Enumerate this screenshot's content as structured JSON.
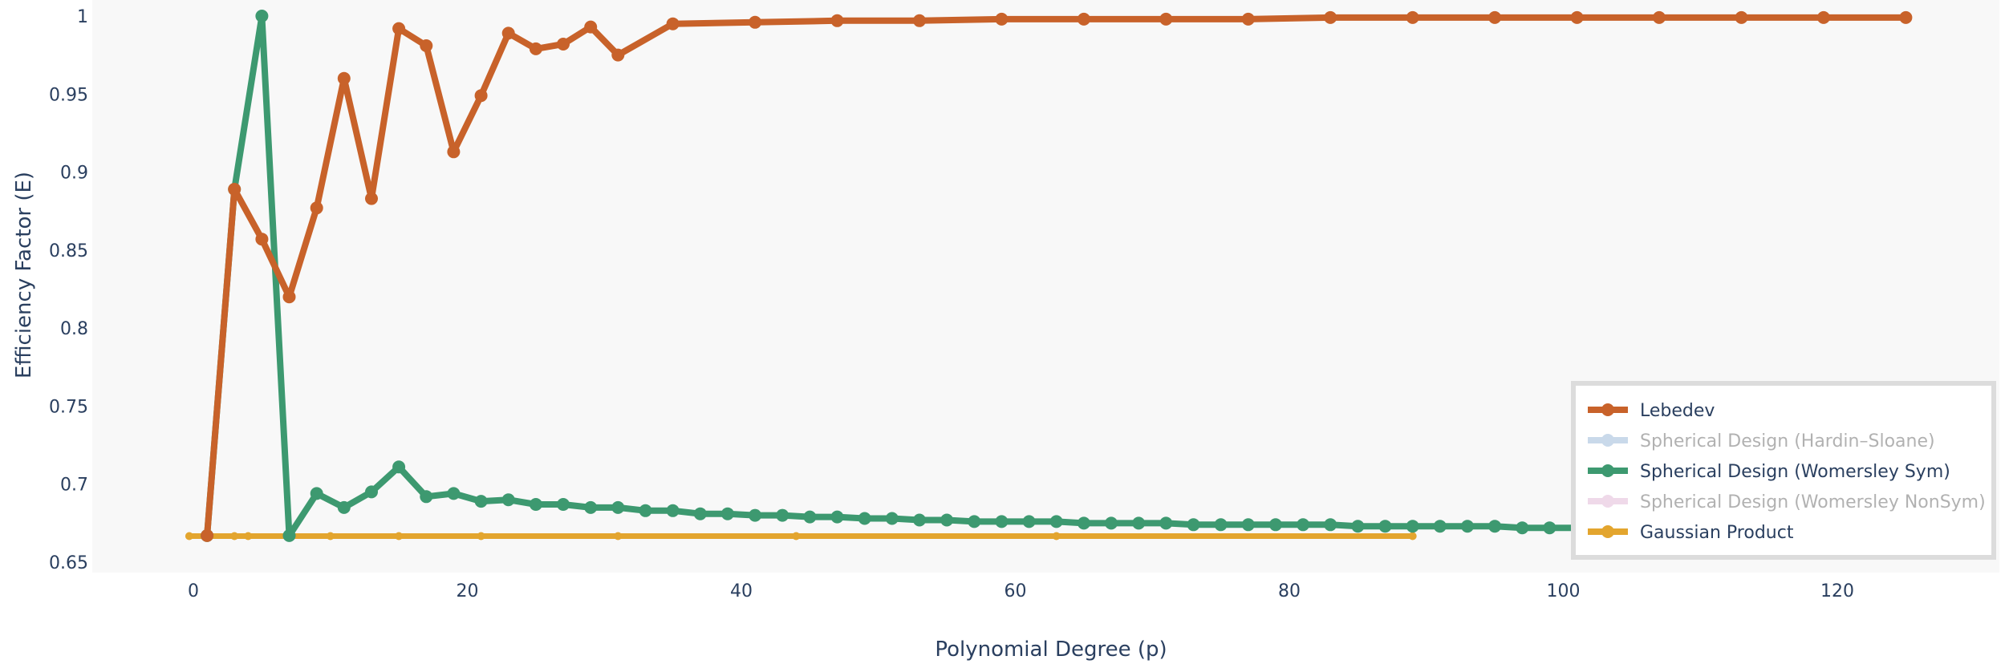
{
  "chart_data": {
    "type": "line",
    "title": "",
    "xlabel": "Polynomial Degree (p)",
    "ylabel": "Efficiency Factor (E)",
    "xlim": [
      -12,
      132
    ],
    "ylim": [
      0.65,
      1
    ],
    "x_ticks": [
      0,
      20,
      40,
      60,
      80,
      100,
      120
    ],
    "y_ticks": [
      0.65,
      0.7,
      0.75,
      0.8,
      0.85,
      0.9,
      0.95,
      1
    ],
    "y_tick_labels": [
      "0.65",
      "0.7",
      "0.75",
      "0.8",
      "0.85",
      "0.9",
      "0.95",
      "1"
    ],
    "grid": false,
    "legend_position": "bottom-right",
    "series": [
      {
        "name": "Lebedev",
        "color": "#c8622a",
        "visible": true,
        "x": [
          1,
          3,
          5,
          7,
          9,
          11,
          13,
          15,
          17,
          19,
          21,
          23,
          25,
          27,
          29,
          31,
          35,
          41,
          47,
          53,
          59,
          65,
          71,
          77,
          83,
          89,
          95,
          101,
          107,
          113,
          119,
          125
        ],
        "y": [
          0.667,
          0.889,
          0.857,
          0.82,
          0.877,
          0.96,
          0.883,
          0.992,
          0.981,
          0.913,
          0.949,
          0.989,
          0.979,
          0.982,
          0.993,
          0.975,
          0.995,
          0.996,
          0.997,
          0.997,
          0.998,
          0.998,
          0.998,
          0.998,
          0.999,
          0.999,
          0.999,
          0.999,
          0.999,
          0.999,
          0.999,
          0.999
        ]
      },
      {
        "name": "Spherical Design (Hardin–Sloane)",
        "color": "#94b5d6",
        "visible": false,
        "x": [],
        "y": []
      },
      {
        "name": "Spherical Design (Womersley Sym)",
        "color": "#3d9970",
        "visible": true,
        "x": [
          1,
          3,
          5,
          7,
          9,
          11,
          13,
          15,
          17,
          19,
          21,
          23,
          25,
          27,
          29,
          31,
          33,
          35,
          37,
          39,
          41,
          43,
          45,
          47,
          49,
          51,
          53,
          55,
          57,
          59,
          61,
          63,
          65,
          67,
          69,
          71,
          73,
          75,
          77,
          79,
          81,
          83,
          85,
          87,
          89,
          91,
          93,
          95,
          97,
          99,
          101
        ],
        "y": [
          0.667,
          0.889,
          1.0,
          0.667,
          0.694,
          0.685,
          0.695,
          0.711,
          0.692,
          0.694,
          0.689,
          0.69,
          0.687,
          0.687,
          0.685,
          0.685,
          0.683,
          0.683,
          0.681,
          0.681,
          0.68,
          0.68,
          0.679,
          0.679,
          0.678,
          0.678,
          0.677,
          0.677,
          0.676,
          0.676,
          0.676,
          0.676,
          0.675,
          0.675,
          0.675,
          0.675,
          0.674,
          0.674,
          0.674,
          0.674,
          0.674,
          0.674,
          0.673,
          0.673,
          0.673,
          0.673,
          0.673,
          0.673,
          0.672,
          0.672,
          0.672
        ]
      },
      {
        "name": "Spherical Design (Womersley NonSym)",
        "color": "#e0b4d4",
        "visible": false,
        "x": [],
        "y": []
      },
      {
        "name": "Gaussian Product",
        "color": "#e3a52e",
        "visible": true,
        "x": [
          -0.3,
          1,
          3,
          4,
          10,
          15,
          21,
          31,
          44,
          63,
          89
        ],
        "y": [
          0.6667,
          0.6667,
          0.6667,
          0.6667,
          0.6667,
          0.6667,
          0.6667,
          0.6667,
          0.6667,
          0.6667,
          0.6667
        ]
      }
    ]
  }
}
